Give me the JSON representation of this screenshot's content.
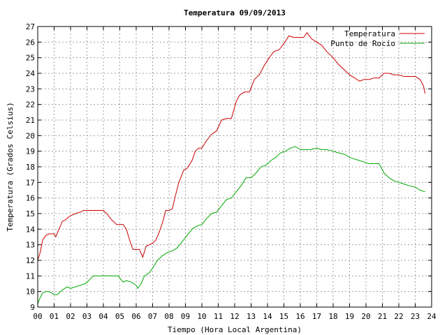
{
  "chart_data": {
    "type": "line",
    "title": "Temperatura 09/09/2013",
    "xlabel": "Tiempo (Hora Local Argentina)",
    "ylabel": "Temperatura (Grados Celsius)",
    "xlim": [
      0,
      24
    ],
    "ylim": [
      9,
      27
    ],
    "x_ticks": [
      "00",
      "01",
      "02",
      "03",
      "04",
      "05",
      "06",
      "07",
      "08",
      "09",
      "10",
      "11",
      "12",
      "13",
      "14",
      "15",
      "16",
      "17",
      "18",
      "19",
      "20",
      "21",
      "22",
      "23",
      "24"
    ],
    "y_ticks": [
      "9",
      "10",
      "11",
      "12",
      "13",
      "14",
      "15",
      "16",
      "17",
      "18",
      "19",
      "20",
      "21",
      "22",
      "23",
      "24",
      "25",
      "26",
      "27"
    ],
    "grid": true,
    "legend_position": "top-right",
    "series": [
      {
        "name": "Temperatura",
        "color": "#cc0000",
        "x": [
          0.0,
          0.15,
          0.3,
          0.5,
          0.7,
          1.0,
          1.1,
          1.3,
          1.5,
          1.7,
          1.9,
          2.1,
          2.3,
          2.6,
          2.8,
          3.0,
          3.3,
          3.5,
          3.8,
          4.0,
          4.2,
          4.5,
          4.8,
          5.0,
          5.2,
          5.4,
          5.6,
          5.8,
          6.0,
          6.2,
          6.4,
          6.6,
          6.8,
          7.0,
          7.2,
          7.4,
          7.6,
          7.8,
          8.0,
          8.2,
          8.4,
          8.6,
          8.9,
          9.1,
          9.4,
          9.6,
          9.8,
          10.0,
          10.3,
          10.6,
          10.9,
          11.2,
          11.5,
          11.8,
          12.1,
          12.3,
          12.6,
          12.9,
          13.2,
          13.5,
          13.8,
          14.1,
          14.4,
          14.7,
          15.0,
          15.3,
          15.6,
          15.9,
          16.2,
          16.4,
          16.7,
          17.0,
          17.3,
          17.6,
          18.0,
          18.3,
          18.7,
          19.0,
          19.3,
          19.6,
          19.9,
          20.2,
          20.5,
          20.8,
          21.1,
          21.4,
          21.7,
          22.0,
          22.3,
          22.6,
          23.0,
          23.3,
          23.5,
          23.6
        ],
        "values": [
          12.0,
          12.5,
          13.3,
          13.6,
          13.7,
          13.7,
          13.5,
          14.0,
          14.5,
          14.6,
          14.8,
          14.9,
          15.0,
          15.1,
          15.2,
          15.2,
          15.2,
          15.2,
          15.2,
          15.2,
          15.0,
          14.6,
          14.3,
          14.3,
          14.3,
          14.0,
          13.3,
          12.7,
          12.7,
          12.7,
          12.2,
          12.9,
          13.0,
          13.1,
          13.3,
          13.8,
          14.4,
          15.2,
          15.2,
          15.3,
          16.2,
          17.0,
          17.8,
          17.9,
          18.4,
          19.0,
          19.2,
          19.2,
          19.7,
          20.1,
          20.3,
          21.0,
          21.1,
          21.1,
          22.2,
          22.6,
          22.8,
          22.8,
          23.6,
          23.9,
          24.5,
          25.0,
          25.4,
          25.5,
          25.9,
          26.4,
          26.3,
          26.3,
          26.3,
          26.6,
          26.2,
          26.0,
          25.8,
          25.4,
          25.0,
          24.6,
          24.2,
          23.9,
          23.7,
          23.5,
          23.6,
          23.6,
          23.7,
          23.7,
          24.0,
          24.0,
          23.9,
          23.9,
          23.8,
          23.8,
          23.8,
          23.6,
          23.2,
          22.7
        ]
      },
      {
        "name": "Punto de Rocío",
        "color": "#00a800",
        "x": [
          0.0,
          0.1,
          0.3,
          0.5,
          0.7,
          1.0,
          1.2,
          1.5,
          1.8,
          2.0,
          2.3,
          2.6,
          2.9,
          3.2,
          3.4,
          3.7,
          4.0,
          4.3,
          4.6,
          4.9,
          5.2,
          5.4,
          5.7,
          6.0,
          6.1,
          6.3,
          6.5,
          6.8,
          7.0,
          7.3,
          7.6,
          7.9,
          8.2,
          8.5,
          8.8,
          9.1,
          9.4,
          9.7,
          10.0,
          10.3,
          10.6,
          10.9,
          11.2,
          11.5,
          11.8,
          12.1,
          12.4,
          12.7,
          13.0,
          13.3,
          13.6,
          13.9,
          14.2,
          14.5,
          14.8,
          15.1,
          15.4,
          15.7,
          16.0,
          16.3,
          16.6,
          17.0,
          17.3,
          17.6,
          18.0,
          18.3,
          18.7,
          19.0,
          19.3,
          19.6,
          19.9,
          20.2,
          20.5,
          20.8,
          21.1,
          21.4,
          21.7,
          22.0,
          22.3,
          22.6,
          23.0,
          23.3,
          23.6
        ],
        "values": [
          9.2,
          9.5,
          9.9,
          10.0,
          10.0,
          9.8,
          9.8,
          10.1,
          10.3,
          10.2,
          10.3,
          10.4,
          10.5,
          10.8,
          11.0,
          11.0,
          11.0,
          11.0,
          11.0,
          11.0,
          10.6,
          10.7,
          10.6,
          10.4,
          10.2,
          10.5,
          11.0,
          11.2,
          11.5,
          12.0,
          12.3,
          12.5,
          12.6,
          12.8,
          13.2,
          13.6,
          14.0,
          14.2,
          14.3,
          14.7,
          15.0,
          15.1,
          15.5,
          15.9,
          16.0,
          16.4,
          16.8,
          17.3,
          17.3,
          17.6,
          18.0,
          18.1,
          18.4,
          18.6,
          18.9,
          19.0,
          19.2,
          19.3,
          19.1,
          19.1,
          19.1,
          19.2,
          19.1,
          19.1,
          19.0,
          18.9,
          18.8,
          18.6,
          18.5,
          18.4,
          18.3,
          18.2,
          18.2,
          18.2,
          17.6,
          17.3,
          17.1,
          17.0,
          16.9,
          16.8,
          16.7,
          16.5,
          16.4
        ]
      }
    ]
  }
}
